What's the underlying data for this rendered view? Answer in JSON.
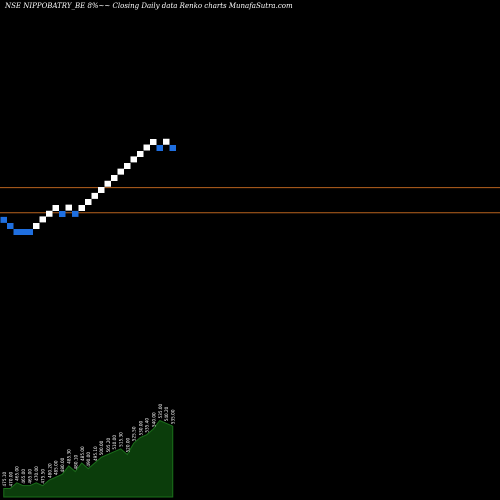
{
  "title": "NSE NIPPOBATRY_BE 8%~~ Closing Daily data  Renko  charts MunafaSutra.com",
  "colors": {
    "background": "#000000",
    "up_brick": "#ffffff",
    "down_brick": "#1f6fe0",
    "reference_line": "#b8621e",
    "volume_fill": "#0b3d0b",
    "volume_stroke": "#1a6e1a",
    "label": "#ffffff"
  },
  "chart_data": {
    "type": "renko",
    "bricks": [
      {
        "value": 475.1,
        "dir": "down"
      },
      {
        "value": 470.0,
        "dir": "down"
      },
      {
        "value": 465.0,
        "dir": "down"
      },
      {
        "value": 465.0,
        "dir": "down"
      },
      {
        "value": 465.0,
        "dir": "down"
      },
      {
        "value": 470.0,
        "dir": "up"
      },
      {
        "value": 475.5,
        "dir": "up"
      },
      {
        "value": 480.2,
        "dir": "up"
      },
      {
        "value": 485.0,
        "dir": "up"
      },
      {
        "value": 480.0,
        "dir": "down"
      },
      {
        "value": 485.3,
        "dir": "up"
      },
      {
        "value": 480.1,
        "dir": "down"
      },
      {
        "value": 485.0,
        "dir": "up"
      },
      {
        "value": 490.0,
        "dir": "up"
      },
      {
        "value": 495.1,
        "dir": "up"
      },
      {
        "value": 500.0,
        "dir": "up"
      },
      {
        "value": 505.2,
        "dir": "up"
      },
      {
        "value": 510.0,
        "dir": "up"
      },
      {
        "value": 515.3,
        "dir": "up"
      },
      {
        "value": 520.0,
        "dir": "up"
      },
      {
        "value": 525.5,
        "dir": "up"
      },
      {
        "value": 530.0,
        "dir": "up"
      },
      {
        "value": 535.4,
        "dir": "up"
      },
      {
        "value": 540.0,
        "dir": "up"
      },
      {
        "value": 535.0,
        "dir": "down"
      },
      {
        "value": 540.2,
        "dir": "up"
      },
      {
        "value": 535.0,
        "dir": "down"
      }
    ],
    "reference_lines": [
      502,
      481
    ],
    "volume": [
      3,
      3,
      5,
      4,
      4,
      5,
      4,
      6,
      7,
      8,
      11,
      9,
      12,
      10,
      12,
      14,
      15,
      16,
      17,
      15,
      19,
      21,
      22,
      24,
      27,
      26,
      25
    ],
    "volume_labels": [
      "475.10",
      "470.00",
      "465.00",
      "465.00",
      "465.00",
      "470.00",
      "475.50",
      "480.20",
      "485.00",
      "480.00",
      "485.30",
      "480.10",
      "485.00",
      "490.00",
      "495.10",
      "500.00",
      "505.20",
      "510.00",
      "515.30",
      "520.00",
      "525.50",
      "530.00",
      "535.40",
      "540.00",
      "535.00",
      "540.20",
      "535.00"
    ]
  }
}
